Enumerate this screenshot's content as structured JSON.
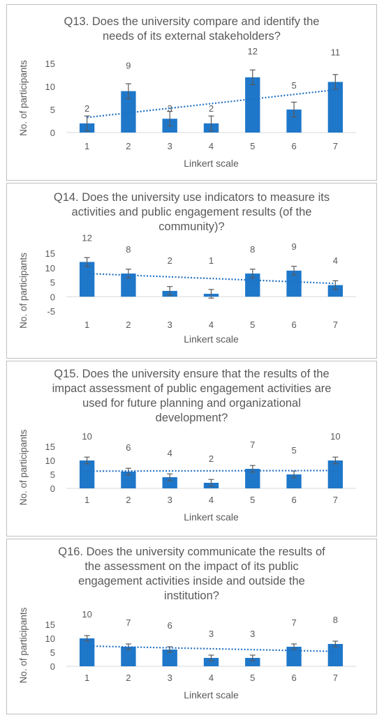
{
  "colors": {
    "bar": "#1f77c9",
    "trend": "#1f6fc4",
    "axis": "#d9d9d9",
    "text": "#595959",
    "errorbar": "#595959"
  },
  "chart_data": [
    {
      "type": "bar",
      "title": "Q13. Does the university compare and identify the\nneeds of its external stakeholders?",
      "xlabel": "Linkert scale",
      "ylabel": "No. of participants",
      "categories": [
        "1",
        "2",
        "3",
        "4",
        "5",
        "6",
        "7"
      ],
      "values": [
        2,
        9,
        3,
        2,
        12,
        5,
        11
      ],
      "data_labels": [
        "2",
        "9",
        "3",
        "2",
        "12",
        "5",
        "11"
      ],
      "yticks": [
        "0",
        "5",
        "10",
        "15"
      ],
      "ylim": [
        0,
        15
      ],
      "error": 1.6,
      "trendline": "linear",
      "grid": false
    },
    {
      "type": "bar",
      "title": "Q14. Does the university use indicators to measure its\nactivities and public engagement results (of the\ncommunity)?",
      "xlabel": "Linkert scale",
      "ylabel": "No. of participants",
      "categories": [
        "1",
        "2",
        "3",
        "4",
        "5",
        "6",
        "7"
      ],
      "values": [
        12,
        8,
        2,
        1,
        8,
        9,
        4
      ],
      "data_labels": [
        "12",
        "8",
        "2",
        "1",
        "8",
        "9",
        "4"
      ],
      "yticks": [
        "-5",
        "0",
        "5",
        "10",
        "15"
      ],
      "ylim": [
        -5,
        15
      ],
      "error": 1.5,
      "trendline": "linear",
      "grid": false
    },
    {
      "type": "bar",
      "title": "Q15. Does the university ensure that the results of the\nimpact assessment of public engagement activities are\nused for future planning and organizational\ndevelopment?",
      "xlabel": "Linkert scale",
      "ylabel": "No. of participants",
      "categories": [
        "1",
        "2",
        "3",
        "4",
        "5",
        "6",
        "7"
      ],
      "values": [
        10,
        6,
        4,
        2,
        7,
        5,
        10
      ],
      "data_labels": [
        "10",
        "6",
        "4",
        "2",
        "7",
        "5",
        "10"
      ],
      "yticks": [
        "0",
        "5",
        "10",
        "15"
      ],
      "ylim": [
        0,
        15
      ],
      "error": 1.2,
      "trendline": "linear",
      "grid": false
    },
    {
      "type": "bar",
      "title": "Q16. Does the university communicate the results of\nthe assessment on the impact of its public\nengagement activities inside and outside the\ninstitution?",
      "xlabel": "Linkert scale",
      "ylabel": "No. of participants",
      "categories": [
        "1",
        "2",
        "3",
        "4",
        "5",
        "6",
        "7"
      ],
      "values": [
        10,
        7,
        6,
        3,
        3,
        7,
        8
      ],
      "data_labels": [
        "10",
        "7",
        "6",
        "3",
        "3",
        "7",
        "8"
      ],
      "yticks": [
        "0",
        "5",
        "10",
        "15"
      ],
      "ylim": [
        0,
        15
      ],
      "error": 1.0,
      "trendline": "linear",
      "grid": false
    }
  ]
}
